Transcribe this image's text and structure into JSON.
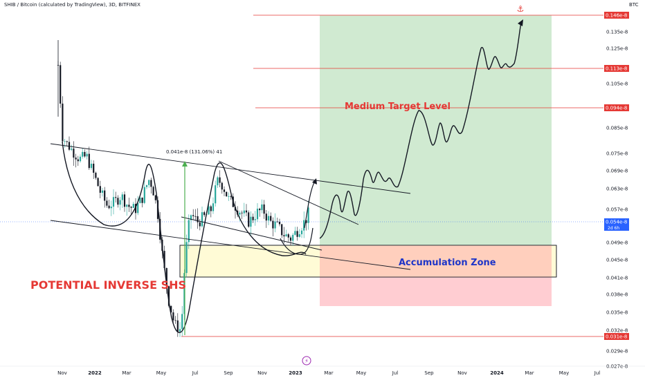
{
  "header": {
    "title": "SHIB / Bitcoin (calculated by TradingView), 3D, BITFINEX",
    "currency": "BTC"
  },
  "colors": {
    "candle_up": "#26a69a",
    "candle_down": "#131722",
    "target_zone": "#c8e6c9",
    "stop_zone": "#ffcdd2",
    "accumulation_fill": "#fff9c4",
    "accumulation_orange": "#ffccbc",
    "level_line": "#e53935",
    "current_price": "#2962ff",
    "label_red": "#e53935",
    "label_blue": "#1e35c8"
  },
  "chart_data": {
    "type": "candlestick",
    "yaxis": {
      "min": 0.027,
      "max": 0.146,
      "unit": "e-8",
      "ticks": [
        {
          "v": 0.135,
          "label": "0.135e-8"
        },
        {
          "v": 0.125,
          "label": "0.125e-8"
        },
        {
          "v": 0.105,
          "label": "0.105e-8"
        },
        {
          "v": 0.085,
          "label": "0.085e-8"
        },
        {
          "v": 0.075,
          "label": "0.075e-8"
        },
        {
          "v": 0.069,
          "label": "0.069e-8"
        },
        {
          "v": 0.063,
          "label": "0.063e-8"
        },
        {
          "v": 0.057,
          "label": "0.057e-8"
        },
        {
          "v": 0.049,
          "label": "0.049e-8"
        },
        {
          "v": 0.045,
          "label": "0.045e-8"
        },
        {
          "v": 0.041,
          "label": "0.041e-8"
        },
        {
          "v": 0.038,
          "label": "0.038e-8"
        },
        {
          "v": 0.035,
          "label": "0.035e-8"
        },
        {
          "v": 0.032,
          "label": "0.032e-8"
        },
        {
          "v": 0.029,
          "label": "0.029e-8"
        },
        {
          "v": 0.027,
          "label": "0.027e-8"
        }
      ],
      "price_labels": [
        {
          "v": 0.146,
          "label": "0.146e-8"
        },
        {
          "v": 0.113,
          "label": "0.113e-8"
        },
        {
          "v": 0.094,
          "label": "0.094e-8"
        },
        {
          "v": 0.031,
          "label": "0.031e-8"
        }
      ],
      "current_price": {
        "v": 0.054,
        "label": "0.054e-8",
        "countdown": "2d 6h"
      }
    },
    "xaxis": {
      "ticks": [
        "Nov",
        "2022",
        "Mar",
        "May",
        "Jul",
        "Sep",
        "Nov",
        "2023",
        "Mar",
        "May",
        "Jul",
        "Sep",
        "Nov",
        "2024",
        "Mar",
        "May",
        "Jul"
      ]
    },
    "horizontal_levels": [
      0.146,
      0.113,
      0.094,
      0.031
    ],
    "annotations": {
      "medium_target": "Medium Target Level",
      "accumulation": "Accumulation Zone",
      "pattern": "POTENTIAL INVERSE SHS",
      "measure": "0.041e-8 (131.06%) 41"
    }
  }
}
